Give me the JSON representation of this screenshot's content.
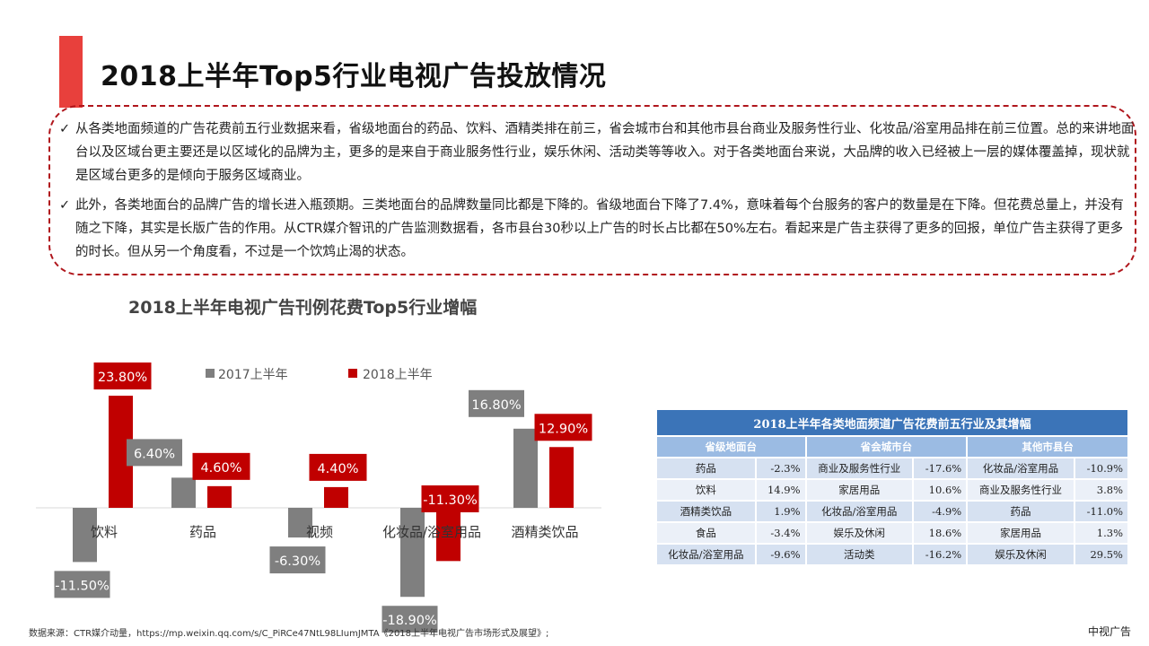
{
  "page_title": "2018上半年Top5行业电视广告投放情况",
  "bullets": [
    "从各类地面频道的广告花费前五行业数据来看，省级地面台的药品、饮料、酒精类排在前三，省会城市台和其他市县台商业及服务性行业、化妆品/浴室用品排在前三位置。总的来讲地面台以及区域台更主要还是以区域化的品牌为主，更多的是来自于商业服务性行业，娱乐休闲、活动类等等收入。对于各类地面台来说，大品牌的收入已经被上一层的媒体覆盖掉，现状就是区域台更多的是倾向于服务区域商业。",
    "此外，各类地面台的品牌广告的增长进入瓶颈期。三类地面台的品牌数量同比都是下降的。省级地面台下降了7.4%，意味着每个台服务的客户的数量是在下降。但花费总量上，并没有随之下降，其实是长版广告的作用。从CTR媒介智讯的广告监测数据看，各市县台30秒以上广告的时长占比都在50%左右。看起来是广告主获得了更多的回报，单位广告主获得了更多的时长。但从另一个角度看，不过是一个饮鸩止渴的状态。"
  ],
  "bullet_mark": "✓",
  "chart_data": {
    "type": "bar",
    "title": "2018上半年电视广告刊例花费Top5行业增幅",
    "categories": [
      "饮料",
      "药品",
      "视频",
      "化妆品/浴室用品",
      "酒精类饮品"
    ],
    "series": [
      {
        "name": "2017上半年",
        "color": "#7f7f7f",
        "values": [
          -11.5,
          6.4,
          -6.3,
          -18.9,
          16.8
        ],
        "labels": [
          "-11.50%",
          "6.40%",
          "-6.30%",
          "-18.90%",
          "16.80%"
        ]
      },
      {
        "name": "2018上半年",
        "color": "#c00000",
        "values": [
          23.8,
          4.6,
          4.4,
          -11.3,
          12.9
        ],
        "labels": [
          "23.80%",
          "4.60%",
          "4.40%",
          "-11.30%",
          "12.90%"
        ]
      }
    ],
    "legend_position": "top",
    "grid": false
  },
  "table": {
    "caption": "2018上半年各类地面频道广告花费前五行业及其增幅",
    "headers": [
      "省级地面台",
      "省会城市台",
      "其他市县台"
    ],
    "rows": [
      [
        "药品",
        "-2.3%",
        "商业及服务性行业",
        "-17.6%",
        "化妆品/浴室用品",
        "-10.9%"
      ],
      [
        "饮料",
        "14.9%",
        "家居用品",
        "10.6%",
        "商业及服务性行业",
        "3.8%"
      ],
      [
        "酒精类饮品",
        "1.9%",
        "化妆品/浴室用品",
        "-4.9%",
        "药品",
        "-11.0%"
      ],
      [
        "食品",
        "-3.4%",
        "娱乐及休闲",
        "18.6%",
        "家居用品",
        "1.3%"
      ],
      [
        "化妆品/浴室用品",
        "-9.6%",
        "活动类",
        "-16.2%",
        "娱乐及休闲",
        "29.5%"
      ]
    ]
  },
  "source": "数据来源：CTR媒介动量，https://mp.weixin.qq.com/s/C_PiRCe47NtL98LIumJMTA《2018上半年电视广告市场形式及展望》;",
  "brand": "中视广告"
}
